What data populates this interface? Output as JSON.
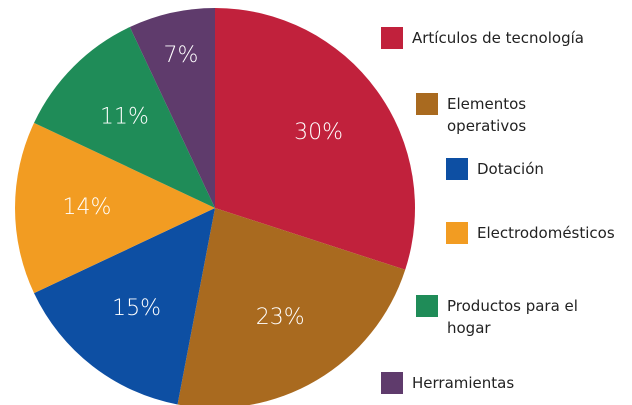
{
  "chart_data": {
    "type": "pie",
    "categories": [
      "Artículos de tecnología",
      "Elementos operativos",
      "Dotación",
      "Electrodomésticos",
      "Productos para el hogar",
      "Herramientas"
    ],
    "values": [
      30,
      23,
      15,
      14,
      11,
      7
    ],
    "value_labels": [
      "30%",
      "23%",
      "15%",
      "14%",
      "11%",
      "7%"
    ],
    "colors": [
      "#c1213c",
      "#a96a1f",
      "#0d4fa3",
      "#f29c22",
      "#1f8c58",
      "#5f3b6c"
    ]
  }
}
